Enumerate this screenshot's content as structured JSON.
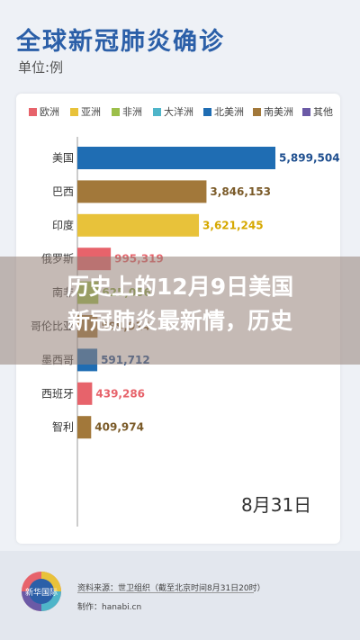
{
  "header": {
    "title": "全球新冠肺炎确诊",
    "unit": "单位:例"
  },
  "legend": [
    {
      "label": "欧洲",
      "color": "#e7636b"
    },
    {
      "label": "亚洲",
      "color": "#e8c23a"
    },
    {
      "label": "非洲",
      "color": "#9cbf4a"
    },
    {
      "label": "大洋洲",
      "color": "#4fb5c9"
    },
    {
      "label": "北美洲",
      "color": "#1f6db3"
    },
    {
      "label": "南美洲",
      "color": "#a2783a"
    },
    {
      "label": "其他",
      "color": "#6b5aa6"
    }
  ],
  "chart_data": {
    "type": "bar",
    "orientation": "horizontal",
    "categories": [
      "美国",
      "巴西",
      "印度",
      "俄罗斯",
      "南非",
      "哥伦比亚",
      "墨西哥",
      "西班牙",
      "智利"
    ],
    "values": [
      5899504,
      3846153,
      3621245,
      995319,
      625056,
      599914,
      591712,
      439286,
      409974
    ],
    "value_labels": [
      "5,899,504",
      "3,846,153",
      "3,621,245",
      "995,319",
      "625,056",
      "599,914",
      "591,712",
      "439,286",
      "409,974"
    ],
    "bar_colors": [
      "#1f6db3",
      "#a2783a",
      "#e8c23a",
      "#e7636b",
      "#9cbf4a",
      "#a2783a",
      "#1f6db3",
      "#e7636b",
      "#a2783a"
    ],
    "label_colors": [
      "#1f4f8f",
      "#7a5a28",
      "#d6a800",
      "#e7636b",
      "#8aa84a",
      "#7a5a28",
      "#1f4f8f",
      "#e7636b",
      "#7a5a28"
    ],
    "grid": false,
    "legend_position": "top"
  },
  "annotation": {
    "date": "8月31日"
  },
  "overlay": {
    "headline_line1": "历史上的12月9日美国",
    "headline_line2": "新冠肺炎最新情，历史"
  },
  "footer": {
    "logo_label": "新华国际",
    "source": "资料来源：世卫组织（截至北京时间8月31日20时）",
    "site": "制作：hanabi.cn"
  }
}
